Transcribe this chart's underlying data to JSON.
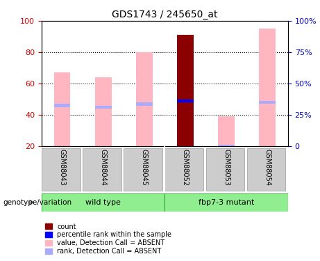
{
  "title": "GDS1743 / 245650_at",
  "samples": [
    "GSM88043",
    "GSM88044",
    "GSM88045",
    "GSM88052",
    "GSM88053",
    "GSM88054"
  ],
  "groups": [
    {
      "label": "wild type",
      "samples": [
        "GSM88043",
        "GSM88044",
        "GSM88045"
      ],
      "color": "#90ee90"
    },
    {
      "label": "fbp7-3 mutant",
      "samples": [
        "GSM88052",
        "GSM88053",
        "GSM88054"
      ],
      "color": "#90ee90"
    }
  ],
  "pink_bar_values": [
    67,
    64,
    80,
    91,
    39,
    95
  ],
  "blue_marker_values": [
    46,
    45,
    47,
    49,
    20,
    48
  ],
  "dark_red_bar_index": 3,
  "dark_red_bar_value": 91,
  "ylim": [
    20,
    100
  ],
  "y_ticks_left": [
    20,
    40,
    60,
    80,
    100
  ],
  "y_ticks_right": [
    0,
    25,
    50,
    75,
    100
  ],
  "right_ylim": [
    0,
    133.33
  ],
  "left_color": "#cc0000",
  "right_color": "#0000cc",
  "pink_color": "#ffb6c1",
  "blue_marker_color": "#aaaaff",
  "dark_red_color": "#8b0000",
  "bright_blue_color": "#0000ff",
  "grid_color": "black",
  "xlabel_area_color": "#cccccc",
  "group_bar_color": "#90ee90",
  "legend_items": [
    {
      "label": "count",
      "color": "#8b0000",
      "marker": "s"
    },
    {
      "label": "percentile rank within the sample",
      "color": "#0000ff",
      "marker": "s"
    },
    {
      "label": "value, Detection Call = ABSENT",
      "color": "#ffb6c1",
      "marker": "s"
    },
    {
      "label": "rank, Detection Call = ABSENT",
      "color": "#aaaaff",
      "marker": "s"
    }
  ],
  "genotype_label": "genotype/variation",
  "group1_label": "wild type",
  "group2_label": "fbp7-3 mutant",
  "bar_width": 0.4
}
